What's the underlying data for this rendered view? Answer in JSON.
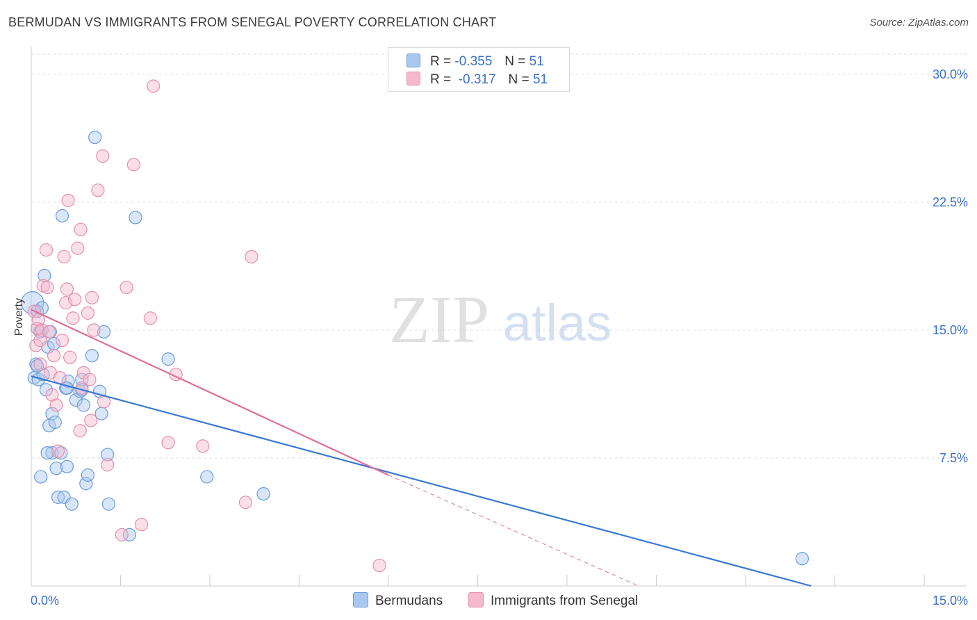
{
  "title": "BERMUDAN VS IMMIGRANTS FROM SENEGAL POVERTY CORRELATION CHART",
  "source": "Source: ZipAtlas.com",
  "watermark": {
    "zip": "ZIP",
    "atlas": "atlas"
  },
  "legend": {
    "rows": [
      {
        "r_label": "R =",
        "r_value": "-0.355",
        "n_label": "N =",
        "n_value": "51"
      },
      {
        "r_label": "R =",
        "r_value": "-0.317",
        "n_label": "N =",
        "n_value": "51"
      }
    ]
  },
  "colors": {
    "blue_fill": "#a9c8ef",
    "blue_stroke": "#6a9bdc",
    "blue_line": "#3a78d4",
    "pink_fill": "#f6b9cc",
    "pink_stroke": "#e58fab",
    "pink_line": "#e06f96",
    "tick_label": "#3b6fc9",
    "grid": "#dddddd"
  },
  "chart_data": {
    "type": "scatter",
    "title": "BERMUDAN VS IMMIGRANTS FROM SENEGAL POVERTY CORRELATION CHART",
    "xlabel": "",
    "ylabel": "Poverty",
    "xlim": [
      0,
      15
    ],
    "ylim": [
      0,
      31.5
    ],
    "x_tick_labels": [
      "0.0%",
      "15.0%"
    ],
    "y_ticks": [
      7.5,
      15.0,
      22.5,
      30.0
    ],
    "y_tick_labels": [
      "7.5%",
      "15.0%",
      "22.5%",
      "30.0%"
    ],
    "series": [
      {
        "name": "Bermudans",
        "color": "blue",
        "r": -0.355,
        "n": 51,
        "trend": {
          "x": [
            0.0,
            13.1
          ],
          "y": [
            12.3,
            0.0
          ]
        },
        "points": [
          [
            0.02,
            16.6
          ],
          [
            0.05,
            12.2
          ],
          [
            0.08,
            13.0
          ],
          [
            0.1,
            16.1
          ],
          [
            0.1,
            15.1
          ],
          [
            0.12,
            12.1
          ],
          [
            0.15,
            14.9
          ],
          [
            0.18,
            16.3
          ],
          [
            0.2,
            12.4
          ],
          [
            0.22,
            18.2
          ],
          [
            0.25,
            11.5
          ],
          [
            0.28,
            14.0
          ],
          [
            0.3,
            9.4
          ],
          [
            0.32,
            14.9
          ],
          [
            0.35,
            10.1
          ],
          [
            0.35,
            7.8
          ],
          [
            0.38,
            14.2
          ],
          [
            0.4,
            9.6
          ],
          [
            0.42,
            6.9
          ],
          [
            0.45,
            5.2
          ],
          [
            0.5,
            7.8
          ],
          [
            0.52,
            21.7
          ],
          [
            0.55,
            5.2
          ],
          [
            0.58,
            11.6
          ],
          [
            0.6,
            7.0
          ],
          [
            0.62,
            12.0
          ],
          [
            0.68,
            4.8
          ],
          [
            0.75,
            10.9
          ],
          [
            0.82,
            11.4
          ],
          [
            0.85,
            12.1
          ],
          [
            0.88,
            10.6
          ],
          [
            0.92,
            6.0
          ],
          [
            0.95,
            6.5
          ],
          [
            1.02,
            13.5
          ],
          [
            1.07,
            26.3
          ],
          [
            1.15,
            11.4
          ],
          [
            1.18,
            10.1
          ],
          [
            1.22,
            14.9
          ],
          [
            1.28,
            7.7
          ],
          [
            1.3,
            4.8
          ],
          [
            1.65,
            3.0
          ],
          [
            1.75,
            21.6
          ],
          [
            2.3,
            13.3
          ],
          [
            2.95,
            6.4
          ],
          [
            3.9,
            5.4
          ],
          [
            12.95,
            1.6
          ],
          [
            0.1,
            12.9
          ],
          [
            0.16,
            6.4
          ],
          [
            0.27,
            7.8
          ],
          [
            0.6,
            11.6
          ],
          [
            0.85,
            11.5
          ]
        ]
      },
      {
        "name": "Immigrants from Senegal",
        "color": "pink",
        "r": -0.317,
        "n": 51,
        "trend": {
          "x": [
            0.0,
            6.0
          ],
          "y": [
            16.2,
            6.5
          ]
        },
        "trend_dashed": {
          "x": [
            6.0,
            10.2
          ],
          "y": [
            6.5,
            0.0
          ]
        },
        "points": [
          [
            0.05,
            16.1
          ],
          [
            0.08,
            14.1
          ],
          [
            0.1,
            15.1
          ],
          [
            0.12,
            15.6
          ],
          [
            0.15,
            14.4
          ],
          [
            0.18,
            15.0
          ],
          [
            0.2,
            17.6
          ],
          [
            0.25,
            19.7
          ],
          [
            0.27,
            17.5
          ],
          [
            0.3,
            14.9
          ],
          [
            0.32,
            12.5
          ],
          [
            0.35,
            11.2
          ],
          [
            0.38,
            13.5
          ],
          [
            0.42,
            10.6
          ],
          [
            0.45,
            7.9
          ],
          [
            0.48,
            12.2
          ],
          [
            0.52,
            14.4
          ],
          [
            0.55,
            19.3
          ],
          [
            0.58,
            16.6
          ],
          [
            0.6,
            17.4
          ],
          [
            0.62,
            22.6
          ],
          [
            0.65,
            13.4
          ],
          [
            0.7,
            15.7
          ],
          [
            0.73,
            16.8
          ],
          [
            0.78,
            19.8
          ],
          [
            0.82,
            9.1
          ],
          [
            0.83,
            20.9
          ],
          [
            0.85,
            11.6
          ],
          [
            0.88,
            12.5
          ],
          [
            0.95,
            16.0
          ],
          [
            0.98,
            12.1
          ],
          [
            1.0,
            9.7
          ],
          [
            1.02,
            16.9
          ],
          [
            1.05,
            15.0
          ],
          [
            1.12,
            23.2
          ],
          [
            1.2,
            25.2
          ],
          [
            1.22,
            10.8
          ],
          [
            1.28,
            7.1
          ],
          [
            1.52,
            3.0
          ],
          [
            1.6,
            17.5
          ],
          [
            1.72,
            24.7
          ],
          [
            1.85,
            3.6
          ],
          [
            2.0,
            15.7
          ],
          [
            2.05,
            29.3
          ],
          [
            2.3,
            8.4
          ],
          [
            2.43,
            12.4
          ],
          [
            2.88,
            8.2
          ],
          [
            3.6,
            4.9
          ],
          [
            3.7,
            19.3
          ],
          [
            5.85,
            1.2
          ],
          [
            0.15,
            13.0
          ]
        ]
      }
    ]
  },
  "bottom_legend": [
    {
      "label": "Bermudans",
      "color": "blue"
    },
    {
      "label": "Immigrants from Senegal",
      "color": "pink"
    }
  ]
}
